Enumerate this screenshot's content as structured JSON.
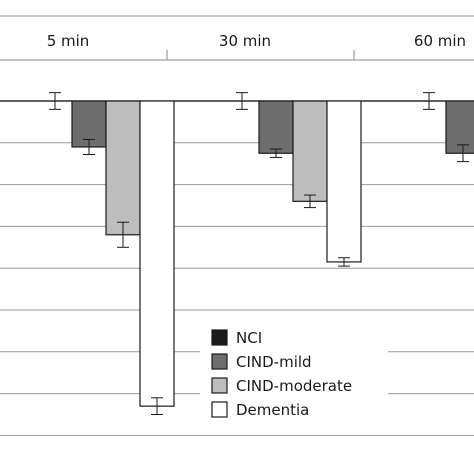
{
  "chart_data": {
    "type": "bar",
    "categories": [
      "5 min",
      "30 min",
      "60 min"
    ],
    "series": [
      {
        "name": "NCI",
        "color": "#1a1a1a",
        "values": [
          0.0,
          0.0,
          0.0
        ],
        "errors": [
          0.2,
          0.2,
          0.2
        ]
      },
      {
        "name": "CIND-mild",
        "color": "#6d6d6d",
        "values": [
          -1.1,
          -1.25,
          -1.25
        ],
        "errors": [
          0.18,
          0.1,
          0.2
        ]
      },
      {
        "name": "CIND-moderate",
        "color": "#bdbdbd",
        "values": [
          -3.2,
          -2.4,
          -3.2
        ],
        "errors": [
          0.3,
          0.15,
          0.2
        ]
      },
      {
        "name": "Dementia",
        "color": "#ffffff",
        "values": [
          -7.3,
          -3.85,
          -3.9
        ],
        "errors": [
          0.2,
          0.1,
          0.2
        ]
      }
    ],
    "ylim": [
      -8,
      0
    ],
    "yticks": [
      0,
      -1,
      -2,
      -3,
      -4,
      -5,
      -6,
      -7,
      -8
    ],
    "grid": true,
    "legend": "center",
    "title": "",
    "xlabel": "",
    "ylabel": ""
  }
}
